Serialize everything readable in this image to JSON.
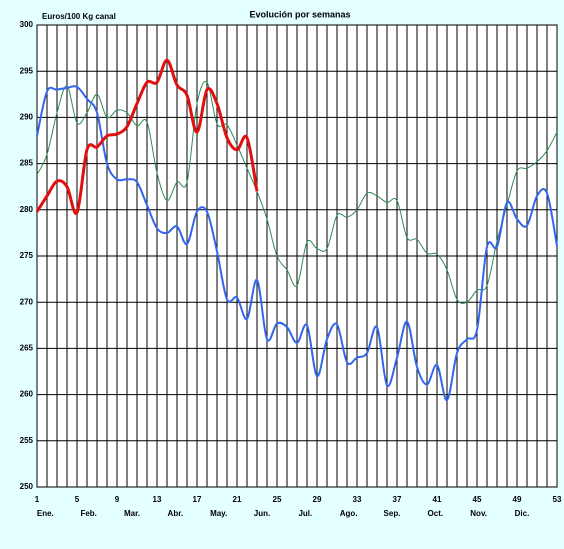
{
  "chart_data": {
    "type": "line",
    "title": "Evolución por semanas",
    "y_label": "Euros/100 Kg canal",
    "x": [
      1,
      2,
      3,
      4,
      5,
      6,
      7,
      8,
      9,
      10,
      11,
      12,
      13,
      14,
      15,
      16,
      17,
      18,
      19,
      20,
      21,
      22,
      23,
      24,
      25,
      26,
      27,
      28,
      29,
      30,
      31,
      32,
      33,
      34,
      35,
      36,
      37,
      38,
      39,
      40,
      41,
      42,
      43,
      44,
      45,
      46,
      47,
      48,
      49,
      50,
      51,
      52,
      53
    ],
    "xlim": [
      1,
      53
    ],
    "xticks": [
      1,
      5,
      9,
      13,
      17,
      21,
      25,
      29,
      33,
      37,
      41,
      45,
      49,
      53
    ],
    "month_labels": [
      "Ene.",
      "Feb.",
      "Mar.",
      "Abr.",
      "May.",
      "Jun.",
      "Jul.",
      "Ago.",
      "Sep.",
      "Oct.",
      "Nov.",
      "Dic."
    ],
    "ylim": [
      250,
      300
    ],
    "yticks": [
      250,
      255,
      260,
      265,
      270,
      275,
      280,
      285,
      290,
      295,
      300
    ],
    "grid": true,
    "smooth": true,
    "series": [
      {
        "color": "#2e8b57",
        "width": 1,
        "values": [
          283.8,
          286,
          290.5,
          293.4,
          289.4,
          290.5,
          292.5,
          290,
          290.8,
          290.5,
          289.1,
          289.5,
          284,
          281,
          283,
          283,
          291.5,
          293.8,
          289.3,
          289.2,
          287,
          284.5,
          282,
          279,
          275,
          273.5,
          271.8,
          276.5,
          275.8,
          275.8,
          279.4,
          279.2,
          280,
          281.8,
          281.5,
          280.8,
          281,
          277,
          276.8,
          275.3,
          275.2,
          273.5,
          270.3,
          270,
          271.3,
          271.8,
          276.6,
          280.5,
          284.2,
          284.5,
          285.2,
          286.4,
          288.4
        ]
      },
      {
        "color": "#3366ee",
        "width": 2,
        "values": [
          288,
          292.8,
          293,
          293.2,
          293.3,
          292,
          290.5,
          285,
          283.3,
          283.3,
          283,
          280.5,
          278,
          277.5,
          278.2,
          276.3,
          279.8,
          279.8,
          275.5,
          270.3,
          270.5,
          268.2,
          272.4,
          266,
          267.7,
          267.3,
          265.6,
          267.5,
          262,
          266,
          267.6,
          263.5,
          264,
          264.5,
          267.3,
          261,
          264,
          267.9,
          263,
          261.1,
          263.2,
          259.4,
          264.5,
          266,
          267,
          276,
          276,
          280.8,
          279,
          278.3,
          281.5,
          281.8,
          276.1
        ]
      },
      {
        "color": "#e01010",
        "width": 3,
        "values": [
          279.8,
          281.5,
          283.1,
          282.5,
          279.7,
          286.5,
          286.8,
          288,
          288.2,
          289,
          291.5,
          293.8,
          293.8,
          296.2,
          293.5,
          292.4,
          288.4,
          293,
          291.5,
          287.8,
          286.5,
          287.8,
          282,
          null,
          null,
          null,
          null,
          null,
          null,
          null,
          null,
          null,
          null,
          null,
          null,
          null,
          null,
          null,
          null,
          null,
          null,
          null,
          null,
          null,
          null,
          null,
          null,
          null,
          null,
          null,
          null,
          null,
          null
        ]
      }
    ]
  }
}
